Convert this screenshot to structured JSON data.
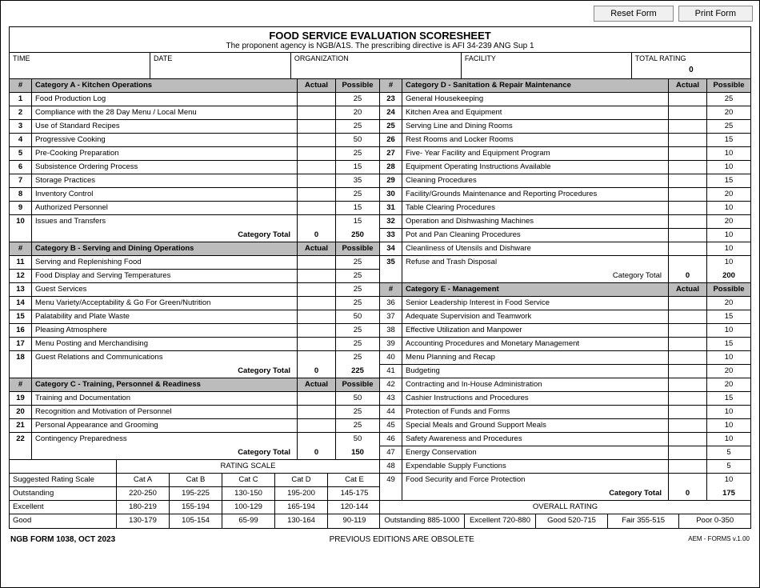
{
  "buttons": {
    "reset": "Reset Form",
    "print": "Print Form"
  },
  "title": "FOOD SERVICE EVALUATION SCORESHEET",
  "subtitle": "The proponent agency is NGB/A1S.  The prescribing directive is AFI 34-239 ANG Sup 1",
  "fields": {
    "time_label": "TIME",
    "date_label": "DATE",
    "org_label": "ORGANIZATION",
    "facility_label": "FACILITY",
    "total_label": "TOTAL RATING",
    "total_value": "0"
  },
  "col_headers": {
    "num": "#",
    "actual": "Actual",
    "possible": "Possible"
  },
  "catA": {
    "title": "Category A - Kitchen Operations",
    "rows": [
      {
        "n": "1",
        "d": "Food Production Log",
        "p": "25"
      },
      {
        "n": "2",
        "d": "Compliance with the 28 Day Menu / Local Menu",
        "p": "20"
      },
      {
        "n": "3",
        "d": "Use of Standard Recipes",
        "p": "25"
      },
      {
        "n": "4",
        "d": "Progressive Cooking",
        "p": "50"
      },
      {
        "n": "5",
        "d": "Pre-Cooking Preparation",
        "p": "25"
      },
      {
        "n": "6",
        "d": "Subsistence Ordering Process",
        "p": "15"
      },
      {
        "n": "7",
        "d": "Storage Practices",
        "p": "35"
      },
      {
        "n": "8",
        "d": "Inventory Control",
        "p": "25"
      },
      {
        "n": "9",
        "d": "Authorized Personnel",
        "p": "15"
      },
      {
        "n": "10",
        "d": "Issues and Transfers",
        "p": "15"
      }
    ],
    "total_label": "Category Total",
    "total_actual": "0",
    "total_possible": "250"
  },
  "catB": {
    "title": "Category B - Serving and Dining Operations",
    "rows": [
      {
        "n": "11",
        "d": "Serving and Replenishing Food",
        "p": "25"
      },
      {
        "n": "12",
        "d": "Food Display and Serving Temperatures",
        "p": "25"
      },
      {
        "n": "13",
        "d": "Guest Services",
        "p": "25"
      },
      {
        "n": "14",
        "d": "Menu Variety/Acceptability & Go For Green/Nutrition",
        "p": "25"
      },
      {
        "n": "15",
        "d": "Palatability and Plate Waste",
        "p": "50"
      },
      {
        "n": "16",
        "d": "Pleasing Atmosphere",
        "p": "25"
      },
      {
        "n": "17",
        "d": "Menu Posting and Merchandising",
        "p": "25"
      },
      {
        "n": "18",
        "d": "Guest Relations and Communications",
        "p": "25"
      }
    ],
    "total_label": "Category Total",
    "total_actual": "0",
    "total_possible": "225"
  },
  "catC": {
    "title": "Category C - Training, Personnel & Readiness",
    "rows": [
      {
        "n": "19",
        "d": "Training and Documentation",
        "p": "50"
      },
      {
        "n": "20",
        "d": "Recognition and Motivation of Personnel",
        "p": "25"
      },
      {
        "n": "21",
        "d": "Personal Appearance and Grooming",
        "p": "25"
      },
      {
        "n": "22",
        "d": "Contingency Preparedness",
        "p": "50"
      }
    ],
    "total_label": "Category Total",
    "total_actual": "0",
    "total_possible": "150"
  },
  "catD": {
    "title": "Category D - Sanitation & Repair Maintenance",
    "rows": [
      {
        "n": "23",
        "d": "General Housekeeping",
        "p": "25"
      },
      {
        "n": "24",
        "d": "Kitchen Area and Equipment",
        "p": "20"
      },
      {
        "n": "25",
        "d": "Serving Line and Dining Rooms",
        "p": "25"
      },
      {
        "n": "26",
        "d": "Rest Rooms and Locker Rooms",
        "p": "15"
      },
      {
        "n": "27",
        "d": "Five- Year Facility and Equipment Program",
        "p": "10"
      },
      {
        "n": "28",
        "d": "Equipment Operating Instructions Available",
        "p": "10"
      },
      {
        "n": "29",
        "d": "Cleaning Procedures",
        "p": "15"
      },
      {
        "n": "30",
        "d": "Facility/Grounds Maintenance and Reporting Procedures",
        "p": "20"
      },
      {
        "n": "31",
        "d": "Table Clearing Procedures",
        "p": "10"
      },
      {
        "n": "32",
        "d": "Operation and Dishwashing Machines",
        "p": "20"
      },
      {
        "n": "33",
        "d": "Pot and Pan Cleaning Procedures",
        "p": "10"
      },
      {
        "n": "34",
        "d": "Cleanliness of Utensils and Dishware",
        "p": "10"
      },
      {
        "n": "35",
        "d": "Refuse and Trash Disposal",
        "p": "10"
      }
    ],
    "total_label": "Category Total",
    "total_actual": "0",
    "total_possible": "200"
  },
  "catE": {
    "title": "Category E - Management",
    "rows": [
      {
        "n": "36",
        "d": "Senior Leadership Interest in Food Service",
        "p": "20"
      },
      {
        "n": "37",
        "d": "Adequate Supervision and Teamwork",
        "p": "15"
      },
      {
        "n": "38",
        "d": "Effective Utilization and Manpower",
        "p": "10"
      },
      {
        "n": "39",
        "d": "Accounting Procedures and Monetary Management",
        "p": "15"
      },
      {
        "n": "40",
        "d": "Menu Planning and Recap",
        "p": "10"
      },
      {
        "n": "41",
        "d": "Budgeting",
        "p": "20"
      },
      {
        "n": "42",
        "d": "Contracting and In-House Administration",
        "p": "20"
      },
      {
        "n": "43",
        "d": "Cashier Instructions and Procedures",
        "p": "15"
      },
      {
        "n": "44",
        "d": "Protection of Funds and Forms",
        "p": "10"
      },
      {
        "n": "45",
        "d": "Special Meals and Ground Support Meals",
        "p": "10"
      },
      {
        "n": "46",
        "d": "Safety Awareness and Procedures",
        "p": "10"
      },
      {
        "n": "47",
        "d": "Energy Conservation",
        "p": "5"
      },
      {
        "n": "48",
        "d": "Expendable Supply Functions",
        "p": "5"
      },
      {
        "n": "49",
        "d": "Food Security and Force Protection",
        "p": "10"
      }
    ],
    "total_label": "Category Total",
    "total_actual": "0",
    "total_possible": "175"
  },
  "rating_scale": {
    "header": "RATING SCALE",
    "suggested": "Suggested Rating Scale",
    "cols": [
      "Cat A",
      "Cat B",
      "Cat C",
      "Cat D",
      "Cat E"
    ],
    "rows": [
      {
        "label": "Outstanding",
        "vals": [
          "220-250",
          "195-225",
          "130-150",
          "195-200",
          "145-175"
        ]
      },
      {
        "label": "Excellent",
        "vals": [
          "180-219",
          "155-194",
          "100-129",
          "165-194",
          "120-144"
        ]
      },
      {
        "label": "Good",
        "vals": [
          "130-179",
          "105-154",
          "65-99",
          "130-164",
          "90-119"
        ]
      }
    ]
  },
  "overall": {
    "title": "OVERALL RATING",
    "cells": [
      "Outstanding 885-1000",
      "Excellent 720-880",
      "Good 520-715",
      "Fair 355-515",
      "Poor 0-350"
    ]
  },
  "footer": {
    "left": "NGB FORM 1038, OCT 2023",
    "center": "PREVIOUS EDITIONS ARE OBSOLETE",
    "right": "AEM - FORMS v.1.00"
  }
}
